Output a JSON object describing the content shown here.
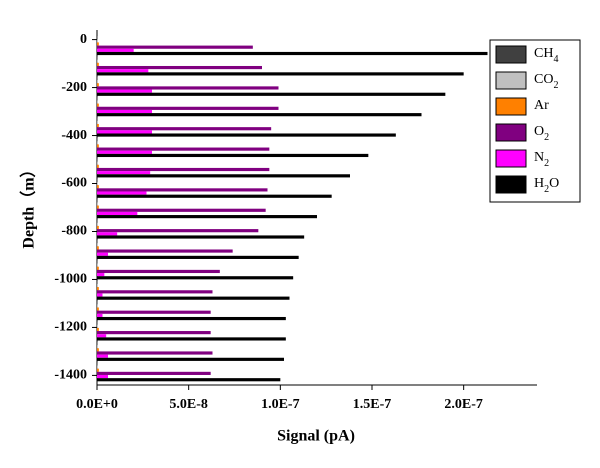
{
  "chart_data": {
    "type": "bar",
    "orientation": "horizontal",
    "x_label": "Signal (pA)",
    "y_label": "Depth（m）",
    "categories": [
      -25,
      -110,
      -195,
      -280,
      -365,
      -450,
      -535,
      -620,
      -705,
      -790,
      -875,
      -960,
      -1045,
      -1130,
      -1215,
      -1300,
      -1385
    ],
    "series": [
      {
        "name": "CH4",
        "color": "#404040",
        "values": [
          2e-10,
          2e-10,
          2e-10,
          2e-10,
          2e-10,
          2e-10,
          2e-10,
          2e-10,
          2e-10,
          2e-10,
          2e-10,
          2e-10,
          2e-10,
          2e-10,
          2e-10,
          2e-10,
          2e-10
        ]
      },
      {
        "name": "CO2",
        "color": "#c0c0c0",
        "values": [
          5e-10,
          5e-10,
          5e-10,
          5e-10,
          5e-10,
          5e-10,
          5e-10,
          5e-10,
          5e-10,
          5e-10,
          5e-10,
          5e-10,
          5e-10,
          5e-10,
          5e-10,
          5e-10,
          5e-10
        ]
      },
      {
        "name": "Ar",
        "color": "#ff8000",
        "values": [
          1e-09,
          1e-09,
          1e-09,
          1e-09,
          1e-09,
          1e-09,
          1e-09,
          1e-09,
          1e-09,
          1e-09,
          1e-09,
          1e-09,
          1e-09,
          1e-09,
          1e-09,
          1e-09,
          1e-09
        ]
      },
      {
        "name": "O2",
        "color": "#800080",
        "values": [
          8.5e-08,
          9e-08,
          9.9e-08,
          9.9e-08,
          9.5e-08,
          9.4e-08,
          9.4e-08,
          9.3e-08,
          9.2e-08,
          8.8e-08,
          7.4e-08,
          6.7e-08,
          6.3e-08,
          6.2e-08,
          6.2e-08,
          6.3e-08,
          6.2e-08
        ]
      },
      {
        "name": "N2",
        "color": "#ff00ff",
        "values": [
          2e-08,
          2.8e-08,
          3e-08,
          3e-08,
          3e-08,
          3e-08,
          2.9e-08,
          2.7e-08,
          2.2e-08,
          1.1e-08,
          6e-09,
          4e-09,
          3e-09,
          3e-09,
          5e-09,
          6e-09,
          6e-09
        ]
      },
      {
        "name": "H2O",
        "color": "#000000",
        "values": [
          2.13e-07,
          2e-07,
          1.9e-07,
          1.77e-07,
          1.63e-07,
          1.48e-07,
          1.38e-07,
          1.28e-07,
          1.2e-07,
          1.13e-07,
          1.1e-07,
          1.07e-07,
          1.05e-07,
          1.03e-07,
          1.03e-07,
          1.02e-07,
          1e-07
        ]
      }
    ],
    "xlim": [
      0,
      2.4e-07
    ],
    "xticks": [
      {
        "value": 0,
        "label": "0.0E+0"
      },
      {
        "value": 5e-08,
        "label": "5.0E-8"
      },
      {
        "value": 1e-07,
        "label": "1.0E-7"
      },
      {
        "value": 1.5e-07,
        "label": "1.5E-7"
      },
      {
        "value": 2e-07,
        "label": "2.0E-7"
      }
    ],
    "ylim": [
      -1440,
      40
    ],
    "yticks": [
      0,
      -200,
      -400,
      -600,
      -800,
      -1000,
      -1200,
      -1400
    ],
    "legend": "top-right"
  }
}
